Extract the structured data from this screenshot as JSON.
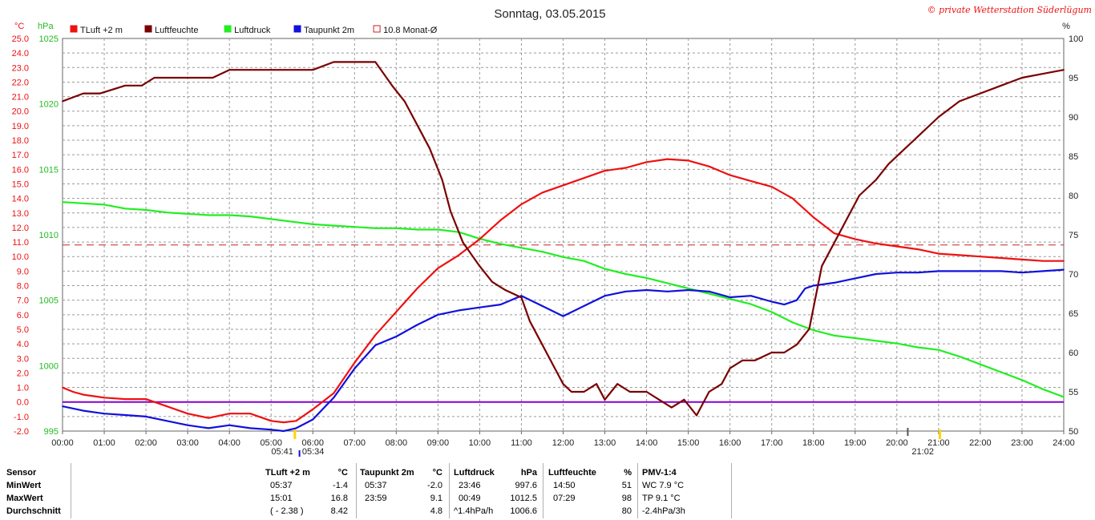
{
  "title": "Sonntag, 03.05.2015",
  "credit": "© private Wetterstation Süderlügum",
  "colors": {
    "tluft": "#ee1111",
    "feuchte": "#7a0000",
    "druck": "#22ee22",
    "taupunkt": "#1111dd",
    "monat": "#cc2222",
    "zero": "#8800cc",
    "grid": "#9a9a9a",
    "sun": "#ffd400"
  },
  "chart_data": {
    "type": "line",
    "title": "Sonntag, 03.05.2015",
    "x_axis": {
      "ticks": [
        "00:00",
        "01:00",
        "02:00",
        "03:00",
        "04:00",
        "05:00",
        "06:00",
        "07:00",
        "08:00",
        "09:00",
        "10:00",
        "11:00",
        "12:00",
        "13:00",
        "14:00",
        "15:00",
        "16:00",
        "17:00",
        "18:00",
        "19:00",
        "20:00",
        "21:00",
        "22:00",
        "23:00",
        "24:00"
      ],
      "range_hours": [
        0,
        24
      ]
    },
    "axes": {
      "temperature": {
        "unit": "°C",
        "range": [
          -2.0,
          25.0
        ],
        "step": 1.0,
        "side": "left"
      },
      "pressure": {
        "unit": "hPa",
        "range": [
          995,
          1025
        ],
        "ticks": [
          995,
          1000,
          1005,
          1010,
          1015,
          1020,
          1025
        ],
        "side": "left"
      },
      "humidity": {
        "unit": "%",
        "range": [
          50,
          100
        ],
        "ticks": [
          50,
          55,
          60,
          65,
          70,
          75,
          80,
          85,
          90,
          95,
          100
        ],
        "side": "right"
      }
    },
    "grid": true,
    "legend_position": "top-left",
    "legend": [
      {
        "key": "tluft",
        "label": "TLuft +2 m"
      },
      {
        "key": "feuchte",
        "label": "Luftfeuchte"
      },
      {
        "key": "druck",
        "label": "Luftdruck"
      },
      {
        "key": "taupunkt",
        "label": "Taupunkt 2m"
      },
      {
        "key": "monat",
        "label": "10.8 Monat-Ø"
      }
    ],
    "reference_lines": [
      {
        "key": "monat",
        "axis": "temperature",
        "value": 10.8,
        "style": "dashed"
      },
      {
        "key": "zero",
        "axis": "temperature",
        "value": 0.0,
        "style": "solid"
      }
    ],
    "sun": {
      "sunrise": "05:34",
      "sunset": "21:02",
      "extra_time": "05:41",
      "sunrise_hour": 5.57,
      "sunset_hour": 21.03,
      "extra_hour": 5.68
    },
    "series": [
      {
        "key": "tluft",
        "name": "TLuft +2 m",
        "axis": "temperature",
        "x": [
          0,
          0.25,
          0.5,
          1,
          1.5,
          2,
          2.5,
          3,
          3.5,
          4,
          4.5,
          5,
          5.3,
          5.6,
          6,
          6.5,
          7,
          7.5,
          8,
          8.5,
          9,
          9.5,
          10,
          10.5,
          11,
          11.5,
          12,
          12.5,
          13,
          13.5,
          14,
          14.5,
          15,
          15.5,
          16,
          16.5,
          17,
          17.5,
          18,
          18.5,
          19,
          19.5,
          20,
          20.5,
          21,
          21.5,
          22,
          22.5,
          23,
          23.5,
          24
        ],
        "y": [
          1.0,
          0.7,
          0.5,
          0.3,
          0.2,
          0.2,
          -0.3,
          -0.8,
          -1.1,
          -0.8,
          -0.8,
          -1.3,
          -1.4,
          -1.3,
          -0.5,
          0.6,
          2.7,
          4.6,
          6.2,
          7.8,
          9.2,
          10.1,
          11.2,
          12.5,
          13.6,
          14.4,
          14.9,
          15.4,
          15.9,
          16.1,
          16.5,
          16.7,
          16.6,
          16.2,
          15.6,
          15.2,
          14.8,
          14.0,
          12.7,
          11.6,
          11.2,
          10.9,
          10.7,
          10.5,
          10.2,
          10.1,
          10.0,
          9.9,
          9.8,
          9.7,
          9.7
        ]
      },
      {
        "key": "feuchte",
        "name": "Luftfeuchte",
        "axis": "humidity",
        "x": [
          0,
          0.5,
          0.9,
          1.5,
          1.9,
          2.2,
          3,
          3.6,
          4,
          5,
          6,
          6.5,
          6.9,
          7.5,
          7.9,
          8.2,
          8.5,
          8.8,
          9.1,
          9.3,
          9.6,
          10,
          10.3,
          10.6,
          11,
          11.2,
          11.5,
          11.8,
          12,
          12.2,
          12.5,
          12.8,
          13,
          13.3,
          13.6,
          14,
          14.3,
          14.6,
          14.9,
          15.2,
          15.5,
          15.8,
          16,
          16.3,
          16.6,
          17,
          17.3,
          17.6,
          17.9,
          18.2,
          18.5,
          18.8,
          19.1,
          19.5,
          19.8,
          20.2,
          20.6,
          21,
          21.5,
          22,
          22.5,
          23,
          23.5,
          24
        ],
        "y": [
          92,
          93,
          93,
          94,
          94,
          95,
          95,
          95,
          96,
          96,
          96,
          97,
          97,
          97,
          94,
          92,
          89,
          86,
          82,
          78,
          74,
          71,
          69,
          68,
          67,
          64,
          61,
          58,
          56,
          55,
          55,
          56,
          54,
          56,
          55,
          55,
          54,
          53,
          54,
          52,
          55,
          56,
          58,
          59,
          59,
          60,
          60,
          61,
          63,
          71,
          74,
          77,
          80,
          82,
          84,
          86,
          88,
          90,
          92,
          93,
          94,
          95,
          95.5,
          96
        ]
      },
      {
        "key": "druck",
        "name": "Luftdruck",
        "axis": "pressure",
        "x": [
          0,
          0.5,
          1,
          1.5,
          2,
          2.5,
          3,
          3.5,
          4,
          4.5,
          5,
          5.5,
          6,
          6.5,
          7,
          7.5,
          8,
          8.5,
          9,
          9.5,
          10,
          10.5,
          11,
          11.5,
          12,
          12.5,
          13,
          13.5,
          14,
          14.5,
          15,
          15.5,
          16,
          16.5,
          17,
          17.5,
          18,
          18.5,
          19,
          19.5,
          20,
          20.5,
          21,
          21.5,
          22,
          22.5,
          23,
          23.5,
          24
        ],
        "y": [
          1012.5,
          1012.4,
          1012.3,
          1012.0,
          1011.9,
          1011.7,
          1011.6,
          1011.5,
          1011.5,
          1011.4,
          1011.2,
          1011.0,
          1010.8,
          1010.7,
          1010.6,
          1010.5,
          1010.5,
          1010.4,
          1010.4,
          1010.2,
          1009.7,
          1009.3,
          1009.0,
          1008.7,
          1008.3,
          1008.0,
          1007.4,
          1007.0,
          1006.7,
          1006.3,
          1005.9,
          1005.5,
          1005.1,
          1004.7,
          1004.1,
          1003.3,
          1002.7,
          1002.3,
          1002.1,
          1001.9,
          1001.7,
          1001.4,
          1001.2,
          1000.7,
          1000.1,
          999.5,
          998.9,
          998.2,
          997.6
        ]
      },
      {
        "key": "taupunkt",
        "name": "Taupunkt 2m",
        "axis": "temperature",
        "x": [
          0,
          0.5,
          1,
          1.5,
          2,
          2.5,
          3,
          3.5,
          4,
          4.5,
          5,
          5.3,
          5.6,
          6,
          6.5,
          7,
          7.5,
          8,
          8.5,
          9,
          9.5,
          10,
          10.5,
          11,
          11.5,
          12,
          12.5,
          13,
          13.5,
          14,
          14.5,
          15,
          15.5,
          16,
          16.5,
          17,
          17.3,
          17.6,
          17.8,
          18,
          18.5,
          19,
          19.5,
          20,
          20.5,
          21,
          21.5,
          22,
          22.5,
          23,
          23.5,
          24
        ],
        "y": [
          -0.3,
          -0.6,
          -0.8,
          -0.9,
          -1.0,
          -1.3,
          -1.6,
          -1.8,
          -1.6,
          -1.8,
          -1.9,
          -2.0,
          -1.8,
          -1.2,
          0.3,
          2.3,
          3.9,
          4.5,
          5.3,
          6.0,
          6.3,
          6.5,
          6.7,
          7.3,
          6.6,
          5.9,
          6.6,
          7.3,
          7.6,
          7.7,
          7.6,
          7.7,
          7.6,
          7.2,
          7.3,
          6.9,
          6.7,
          7.0,
          7.8,
          8.0,
          8.2,
          8.5,
          8.8,
          8.9,
          8.9,
          9.0,
          9.0,
          9.0,
          9.0,
          8.9,
          9.0,
          9.1
        ]
      }
    ]
  },
  "stats": {
    "headers": {
      "sensor": "Sensor",
      "tluft": "TLuft +2 m",
      "tluft_unit": "°C",
      "taupunkt": "Taupunkt 2m",
      "taupunkt_unit": "°C",
      "druck": "Luftdruck",
      "druck_unit": "hPa",
      "feuchte": "Luftfeuchte",
      "feuchte_unit": "%",
      "pmv": "PMV-1:4"
    },
    "rows": [
      {
        "label": "MinWert",
        "tluft_time": "05:37",
        "tluft_val": "-1.4",
        "tp_time": "05:37",
        "tp_val": "-2.0",
        "druck_time": "23:46",
        "druck_val": "997.6",
        "feuchte_time": "14:50",
        "feuchte_val": "51",
        "pmv": "WC 7.9 °C"
      },
      {
        "label": "MaxWert",
        "tluft_time": "15:01",
        "tluft_val": "16.8",
        "tp_time": "23:59",
        "tp_val": "9.1",
        "druck_time": "00:49",
        "druck_val": "1012.5",
        "feuchte_time": "07:29",
        "feuchte_val": "98",
        "pmv": "TP 9.1 °C"
      },
      {
        "label": "Durchschnitt",
        "tluft_time": "( - 2.38 )",
        "tluft_val": "8.42",
        "tp_time": "",
        "tp_val": "4.8",
        "druck_time": "^1.4hPa/h",
        "druck_val": "1006.6",
        "feuchte_time": "",
        "feuchte_val": "80",
        "pmv": "-2.4hPa/3h"
      }
    ]
  }
}
